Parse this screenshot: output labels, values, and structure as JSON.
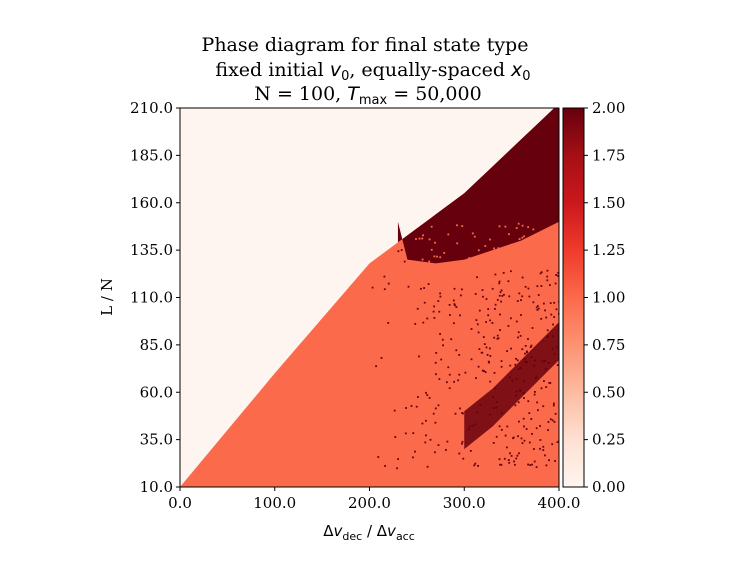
{
  "chart_data": {
    "type": "heatmap",
    "title_lines": [
      "Phase diagram for final state type",
      "fixed initial v0, equally-spaced x0",
      "N = 100, Tmax = 50,000"
    ],
    "title_parts": {
      "line2_prefix": "fixed initial ",
      "line2_v": "v",
      "line2_v_sub": "0",
      "line2_mid": ", equally-spaced ",
      "line2_x": "x",
      "line2_x_sub": "0",
      "line3_prefix": "N = 100, ",
      "line3_T": "T",
      "line3_T_sub": "max",
      "line3_suffix": " = 50,000"
    },
    "xlabel_parts": {
      "d1": "Δ",
      "v1": "v",
      "s1": "dec",
      "sep": " / ",
      "d2": "Δ",
      "v2": "v",
      "s2": "acc"
    },
    "ylabel": "L / N",
    "xlim": [
      0,
      400
    ],
    "ylim": [
      10,
      210
    ],
    "x_ticks": [
      "0.0",
      "100.0",
      "200.0",
      "300.0",
      "400.0"
    ],
    "x_tick_values": [
      0,
      100,
      200,
      300,
      400
    ],
    "y_ticks": [
      "10.0",
      "35.0",
      "60.0",
      "85.0",
      "110.0",
      "135.0",
      "160.0",
      "185.0",
      "210.0"
    ],
    "y_tick_values": [
      10,
      35,
      60,
      85,
      110,
      135,
      160,
      185,
      210
    ],
    "colormap": "Reds",
    "colorbar": {
      "range": [
        0,
        2
      ],
      "ticks": [
        "0.00",
        "0.25",
        "0.50",
        "0.75",
        "1.00",
        "1.25",
        "1.50",
        "1.75",
        "2.00"
      ],
      "tick_values": [
        0,
        0.25,
        0.5,
        0.75,
        1.0,
        1.25,
        1.5,
        1.75,
        2.0
      ]
    },
    "regions": [
      {
        "value": 0,
        "description": "upper-left region above diagonal boundary",
        "color": "#fff5f0"
      },
      {
        "value": 1,
        "description": "lower region below diagonal boundary",
        "color": "#fb6b4b"
      },
      {
        "value": 2,
        "description": "upper-right region at large x and large y",
        "color": "#67000d"
      }
    ],
    "boundary_0": [
      [
        0,
        10
      ],
      [
        40,
        34
      ],
      [
        100,
        70
      ],
      [
        200,
        128
      ],
      [
        300,
        165
      ],
      [
        395,
        210
      ]
    ],
    "boundary_2_left": [
      [
        230,
        150
      ],
      [
        240,
        130
      ],
      [
        270,
        128
      ],
      [
        300,
        130
      ],
      [
        330,
        135
      ],
      [
        360,
        140
      ],
      [
        400,
        150
      ]
    ],
    "band_2": [
      [
        300,
        38
      ],
      [
        330,
        50
      ],
      [
        360,
        65
      ],
      [
        400,
        85
      ]
    ]
  }
}
